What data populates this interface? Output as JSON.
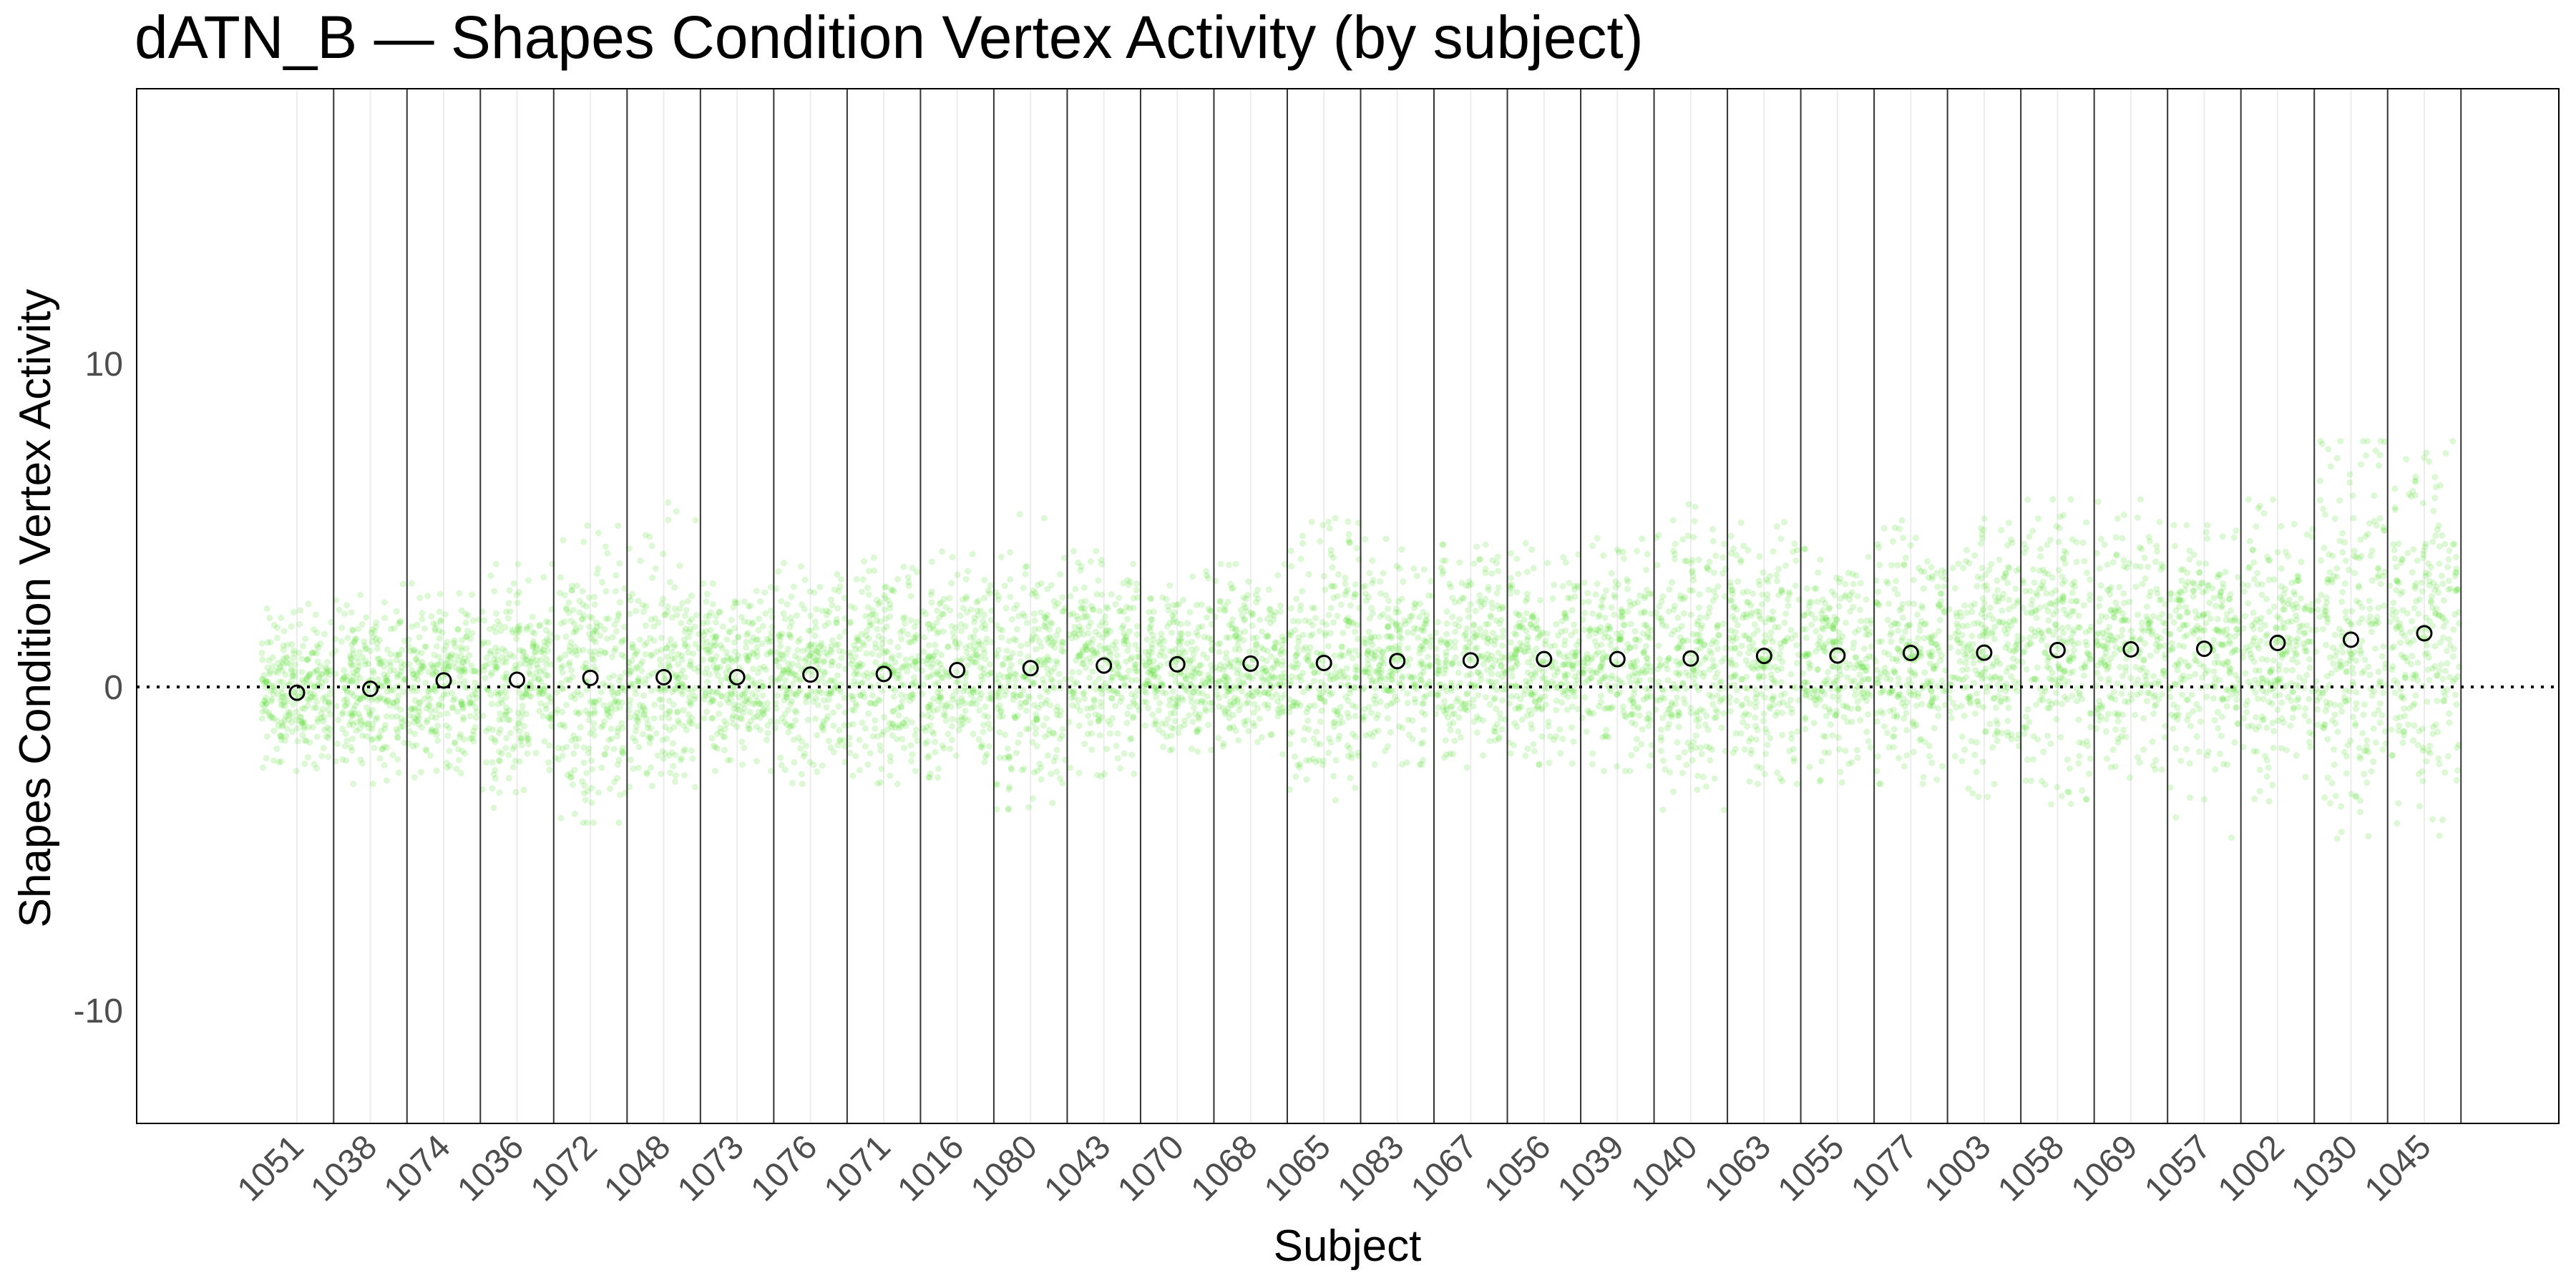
{
  "chart_data": {
    "type": "scatter",
    "title": "dATN_B — Shapes Condition Vertex Activity (by subject)",
    "xlabel": "Subject",
    "ylabel": "Shapes Condition Vertex Activity",
    "ylim": [
      -13.5,
      18.5
    ],
    "yticks": [
      -10,
      0,
      10
    ],
    "reference_line_y": 0,
    "grid": false,
    "legend": "none",
    "point_color": "#5ee03a",
    "mean_marker": "open-circle",
    "categories": [
      "1051",
      "1038",
      "1074",
      "1036",
      "1072",
      "1048",
      "1073",
      "1076",
      "1071",
      "1016",
      "1080",
      "1043",
      "1070",
      "1068",
      "1065",
      "1083",
      "1067",
      "1056",
      "1039",
      "1040",
      "1063",
      "1055",
      "1077",
      "1003",
      "1058",
      "1069",
      "1057",
      "1002",
      "1030",
      "1045"
    ],
    "subject_means": [
      -0.18,
      -0.06,
      0.2,
      0.22,
      0.28,
      0.3,
      0.3,
      0.38,
      0.4,
      0.52,
      0.58,
      0.66,
      0.7,
      0.72,
      0.74,
      0.8,
      0.82,
      0.86,
      0.86,
      0.88,
      0.96,
      0.97,
      1.05,
      1.06,
      1.14,
      1.16,
      1.18,
      1.36,
      1.46,
      1.66
    ],
    "subject_ranges": [
      [
        -2.6,
        2.6
      ],
      [
        -3.0,
        3.4
      ],
      [
        -2.8,
        3.2
      ],
      [
        -3.8,
        3.8
      ],
      [
        -4.2,
        5.0
      ],
      [
        -3.4,
        5.8
      ],
      [
        -2.6,
        3.2
      ],
      [
        -3.0,
        4.4
      ],
      [
        -3.0,
        4.0
      ],
      [
        -2.8,
        4.2
      ],
      [
        -3.8,
        5.6
      ],
      [
        -3.0,
        4.2
      ],
      [
        -2.0,
        3.6
      ],
      [
        -2.2,
        3.8
      ],
      [
        -3.6,
        5.4
      ],
      [
        -2.4,
        4.6
      ],
      [
        -2.6,
        4.4
      ],
      [
        -2.4,
        4.6
      ],
      [
        -2.6,
        4.6
      ],
      [
        -3.8,
        5.8
      ],
      [
        -3.0,
        5.2
      ],
      [
        -3.0,
        4.6
      ],
      [
        -3.0,
        5.4
      ],
      [
        -3.4,
        5.2
      ],
      [
        -3.8,
        5.8
      ],
      [
        -3.0,
        5.8
      ],
      [
        -5.0,
        5.0
      ],
      [
        -3.6,
        5.8
      ],
      [
        -5.4,
        7.6
      ],
      [
        -5.0,
        7.6
      ]
    ]
  }
}
